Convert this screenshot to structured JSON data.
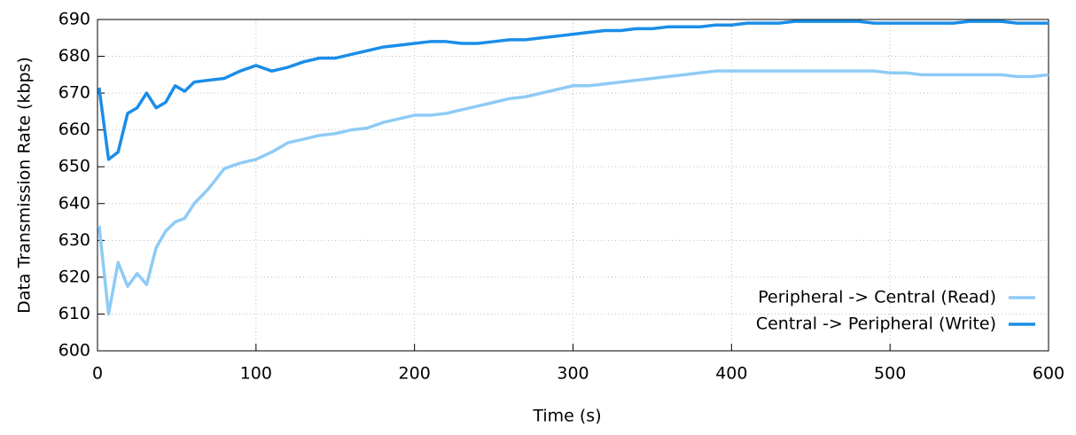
{
  "chart_data": {
    "type": "line",
    "x_label": "Time (s)",
    "y_label": "Data Transmission Rate (kbps)",
    "x": [
      1,
      7,
      13,
      19,
      25,
      31,
      37,
      43,
      49,
      55,
      61,
      70,
      80,
      90,
      100,
      110,
      120,
      130,
      140,
      150,
      160,
      170,
      180,
      190,
      200,
      210,
      220,
      230,
      240,
      250,
      260,
      270,
      280,
      290,
      300,
      310,
      320,
      330,
      340,
      350,
      360,
      370,
      380,
      390,
      400,
      410,
      420,
      430,
      440,
      450,
      460,
      470,
      480,
      490,
      500,
      510,
      520,
      530,
      540,
      550,
      560,
      570,
      580,
      590,
      600
    ],
    "series": [
      {
        "name": "Peripheral -> Central (Read)",
        "color": "#8ecbf5",
        "values": [
          634,
          610,
          624,
          617.5,
          621,
          618,
          628,
          632.5,
          635,
          636,
          640,
          644,
          649.5,
          651,
          652,
          654,
          656.5,
          657.5,
          658.5,
          659,
          660,
          660.5,
          662,
          663,
          664,
          664,
          664.5,
          665.5,
          666.5,
          667.5,
          668.5,
          669,
          670,
          671,
          672,
          672,
          672.5,
          673,
          673.5,
          674,
          674.5,
          675,
          675.5,
          676,
          676,
          676,
          676,
          676,
          676,
          676,
          676,
          676,
          676,
          676,
          675.5,
          675.5,
          675,
          675,
          675,
          675,
          675,
          675,
          674.5,
          674.5,
          675
        ]
      },
      {
        "name": "Central -> Peripheral (Write)",
        "color": "#1a8de8",
        "values": [
          671.5,
          652,
          654,
          664.5,
          666,
          670,
          666,
          667.5,
          672,
          670.5,
          673,
          673.5,
          674,
          676,
          677.5,
          676,
          677,
          678.5,
          679.5,
          679.5,
          680.5,
          681.5,
          682.5,
          683,
          683.5,
          684,
          684,
          683.5,
          683.5,
          684,
          684.5,
          684.5,
          685,
          685.5,
          686,
          686.5,
          687,
          687,
          687.5,
          687.5,
          688,
          688,
          688,
          688.5,
          688.5,
          689,
          689,
          689,
          689.5,
          689.5,
          689.5,
          689.5,
          689.5,
          689,
          689,
          689,
          689,
          689,
          689,
          689.5,
          689.5,
          689.5,
          689,
          689,
          689
        ]
      }
    ],
    "xlim": [
      0,
      600
    ],
    "xticks": [
      0,
      100,
      200,
      300,
      400,
      500,
      600
    ],
    "ylim": [
      600,
      690
    ],
    "yticks": [
      600,
      610,
      620,
      630,
      640,
      650,
      660,
      670,
      680,
      690
    ],
    "grid": true,
    "legend": "lower right"
  }
}
